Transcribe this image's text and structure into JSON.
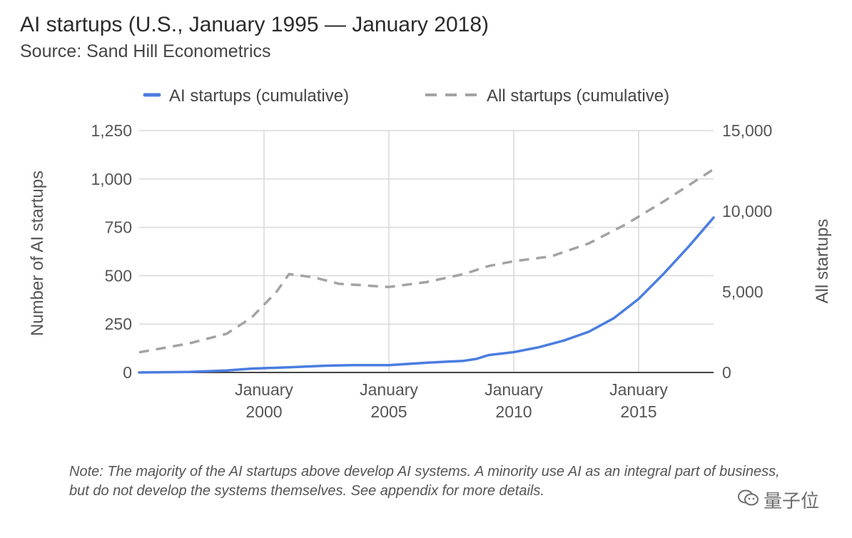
{
  "title": "AI startups (U.S., January 1995 — January 2018)",
  "subtitle": "Source: Sand Hill Econometrics",
  "note": "Note: The majority of the AI startups above develop AI systems. A minority use AI as an integral part of business, but do not develop the systems themselves. See appendix for more details.",
  "watermark": "量子位",
  "chart_data": {
    "type": "line",
    "x_range": [
      "1995-01",
      "2018-01"
    ],
    "x_ticks": [
      {
        "year": 2000,
        "line1": "January",
        "line2": "2000"
      },
      {
        "year": 2005,
        "line1": "January",
        "line2": "2005"
      },
      {
        "year": 2010,
        "line1": "January",
        "line2": "2010"
      },
      {
        "year": 2015,
        "line1": "January",
        "line2": "2015"
      }
    ],
    "ylabel_left": "Number of AI startups",
    "ylabel_right": "All startups",
    "ylim_left": [
      0,
      1250
    ],
    "ylim_right": [
      0,
      15000
    ],
    "yticks_left": [
      0,
      250,
      500,
      750,
      1000,
      1250
    ],
    "yticks_left_labels": [
      "0",
      "250",
      "500",
      "750",
      "1,000",
      "1,250"
    ],
    "yticks_right": [
      0,
      5000,
      10000,
      15000
    ],
    "yticks_right_labels": [
      "0",
      "5,000",
      "10,000",
      "15,000"
    ],
    "grid": true,
    "legend_position": "top",
    "series": [
      {
        "name": "AI startups (cumulative)",
        "axis": "left",
        "color": "#4a7de0",
        "style": "solid",
        "points": [
          [
            1995.0,
            0
          ],
          [
            1997.0,
            3
          ],
          [
            1998.5,
            10
          ],
          [
            1999.5,
            20
          ],
          [
            2001.0,
            27
          ],
          [
            2002.5,
            35
          ],
          [
            2003.5,
            38
          ],
          [
            2005.0,
            38
          ],
          [
            2006.5,
            50
          ],
          [
            2008.0,
            60
          ],
          [
            2008.5,
            70
          ],
          [
            2009.0,
            90
          ],
          [
            2010.0,
            105
          ],
          [
            2011.0,
            130
          ],
          [
            2012.0,
            165
          ],
          [
            2013.0,
            210
          ],
          [
            2014.0,
            280
          ],
          [
            2015.0,
            380
          ],
          [
            2016.0,
            510
          ],
          [
            2017.0,
            650
          ],
          [
            2018.0,
            800
          ]
        ]
      },
      {
        "name": "All startups (cumulative)",
        "axis": "right",
        "color": "#a3a3a3",
        "style": "dashed",
        "points": [
          [
            1995.0,
            1250
          ],
          [
            1997.0,
            1800
          ],
          [
            1998.5,
            2400
          ],
          [
            1999.5,
            3400
          ],
          [
            2000.5,
            5000
          ],
          [
            2001.0,
            6100
          ],
          [
            2002.0,
            5900
          ],
          [
            2003.0,
            5500
          ],
          [
            2005.0,
            5300
          ],
          [
            2006.5,
            5600
          ],
          [
            2008.0,
            6100
          ],
          [
            2009.0,
            6600
          ],
          [
            2010.0,
            6900
          ],
          [
            2011.5,
            7200
          ],
          [
            2013.0,
            8000
          ],
          [
            2014.5,
            9200
          ],
          [
            2016.0,
            10600
          ],
          [
            2018.0,
            12600
          ]
        ]
      }
    ]
  }
}
